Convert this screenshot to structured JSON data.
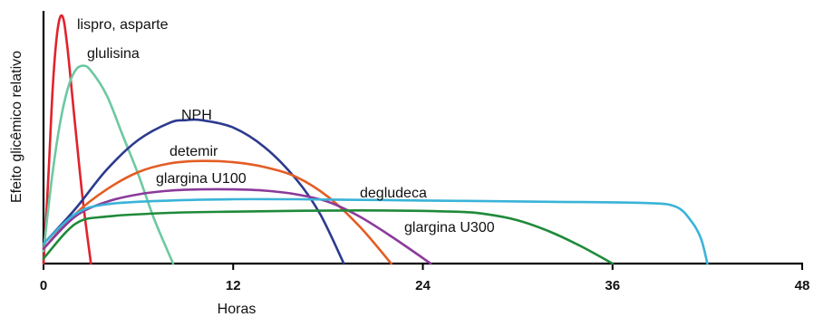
{
  "chart_data": {
    "type": "line",
    "title": "",
    "xlabel": "Horas",
    "ylabel": "Efeito glicêmico relativo",
    "xlim": [
      0,
      48
    ],
    "ylim": [
      0,
      1
    ],
    "xticks": [
      0,
      12,
      24,
      36,
      48
    ],
    "grid": false,
    "legend": "none",
    "series": [
      {
        "name": "lispro, asparte",
        "color": "#e0232d",
        "points": [
          [
            0,
            0
          ],
          [
            0.3,
            0.34
          ],
          [
            0.6,
            0.73
          ],
          [
            0.9,
            0.95
          ],
          [
            1.2,
            1.0
          ],
          [
            1.5,
            0.88
          ],
          [
            2.0,
            0.56
          ],
          [
            2.5,
            0.25
          ],
          [
            3.0,
            0
          ]
        ]
      },
      {
        "name": "glulisina",
        "color": "#6dc8a1",
        "points": [
          [
            0,
            0.05
          ],
          [
            0.5,
            0.33
          ],
          [
            1,
            0.55
          ],
          [
            1.5,
            0.7
          ],
          [
            2,
            0.78
          ],
          [
            2.5,
            0.8
          ],
          [
            3,
            0.78
          ],
          [
            4,
            0.68
          ],
          [
            5,
            0.52
          ],
          [
            6,
            0.36
          ],
          [
            7,
            0.18
          ],
          [
            8.2,
            0
          ]
        ]
      },
      {
        "name": "NPH",
        "color": "#2c3a8f",
        "points": [
          [
            0,
            0.08
          ],
          [
            2,
            0.22
          ],
          [
            4,
            0.38
          ],
          [
            6,
            0.5
          ],
          [
            8,
            0.57
          ],
          [
            9,
            0.58
          ],
          [
            10,
            0.58
          ],
          [
            12,
            0.55
          ],
          [
            14,
            0.47
          ],
          [
            16,
            0.34
          ],
          [
            17.5,
            0.2
          ],
          [
            19,
            0
          ]
        ]
      },
      {
        "name": "detemir",
        "color": "#e35d25",
        "points": [
          [
            0,
            0.06
          ],
          [
            2,
            0.2
          ],
          [
            4,
            0.3
          ],
          [
            6,
            0.37
          ],
          [
            8,
            0.405
          ],
          [
            10,
            0.415
          ],
          [
            12,
            0.41
          ],
          [
            14,
            0.39
          ],
          [
            16,
            0.35
          ],
          [
            18,
            0.27
          ],
          [
            20,
            0.15
          ],
          [
            22,
            0
          ]
        ]
      },
      {
        "name": "glargina U100",
        "color": "#8b3a9a",
        "points": [
          [
            0,
            0.06
          ],
          [
            2,
            0.19
          ],
          [
            4,
            0.25
          ],
          [
            6,
            0.28
          ],
          [
            8,
            0.295
          ],
          [
            10,
            0.3
          ],
          [
            12,
            0.3
          ],
          [
            14,
            0.295
          ],
          [
            16,
            0.28
          ],
          [
            18,
            0.25
          ],
          [
            20,
            0.19
          ],
          [
            22,
            0.11
          ],
          [
            24.5,
            0
          ]
        ]
      },
      {
        "name": "degludeca",
        "color": "#3ab3d8",
        "points": [
          [
            0,
            0.08
          ],
          [
            2,
            0.2
          ],
          [
            4,
            0.24
          ],
          [
            8,
            0.255
          ],
          [
            12,
            0.26
          ],
          [
            16,
            0.26
          ],
          [
            24,
            0.255
          ],
          [
            32,
            0.25
          ],
          [
            38,
            0.245
          ],
          [
            40,
            0.23
          ],
          [
            41,
            0.17
          ],
          [
            41.6,
            0.1
          ],
          [
            42,
            0
          ]
        ]
      },
      {
        "name": "glargina U300",
        "color": "#1f8a3a",
        "points": [
          [
            0,
            0.02
          ],
          [
            2,
            0.16
          ],
          [
            4,
            0.19
          ],
          [
            8,
            0.205
          ],
          [
            12,
            0.21
          ],
          [
            20,
            0.215
          ],
          [
            26,
            0.21
          ],
          [
            28,
            0.2
          ],
          [
            30,
            0.175
          ],
          [
            32,
            0.13
          ],
          [
            34,
            0.07
          ],
          [
            36,
            0
          ]
        ]
      }
    ]
  }
}
